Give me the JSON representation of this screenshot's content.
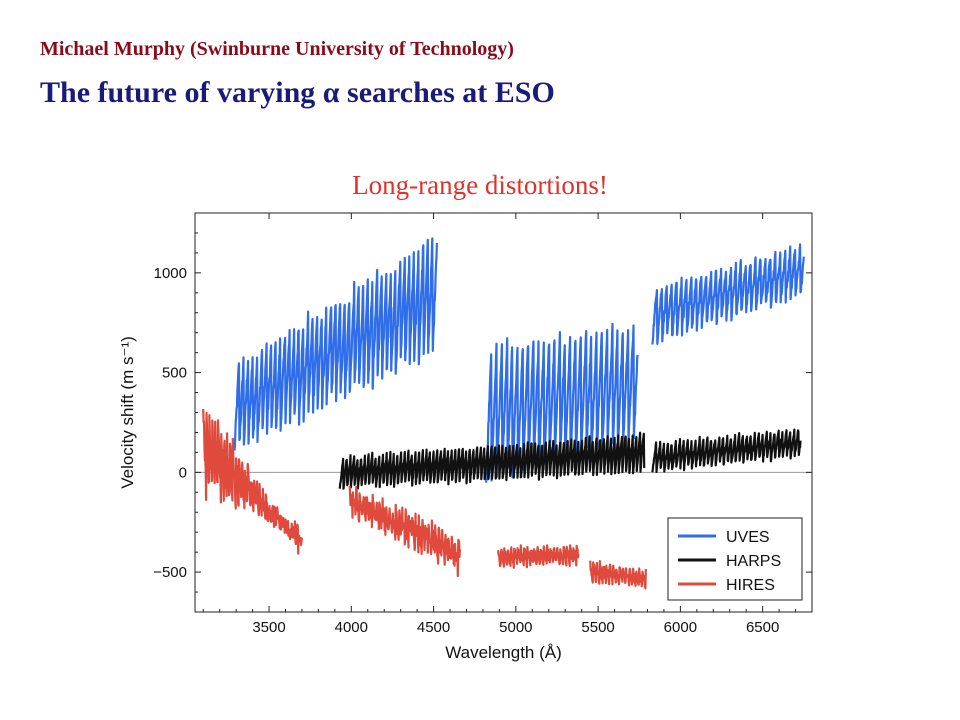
{
  "header": {
    "author": "Michael Murphy (Swinburne University of Technology)",
    "title": "The future of varying α searches at ESO"
  },
  "chart_data": {
    "type": "line",
    "title": "Long-range distortions!",
    "xlabel": "Wavelength (Å)",
    "ylabel": "Velocity shift (m s⁻¹)",
    "xlim": [
      3050,
      6800
    ],
    "ylim": [
      -700,
      1300
    ],
    "xticks": [
      3500,
      4000,
      4500,
      5000,
      5500,
      6000,
      6500
    ],
    "yticks": [
      -500,
      0,
      500,
      1000
    ],
    "zero_line": true,
    "grid": false,
    "legend_position": "bottom-right",
    "series": [
      {
        "name": "UVES",
        "color": "#2f6ee8",
        "segments": [
          {
            "x0": 3290,
            "x1": 4520,
            "start": [
              100,
              550
            ],
            "end": [
              600,
              1200
            ],
            "period": 28,
            "amp": 250,
            "noise": 60
          },
          {
            "x0": 4820,
            "x1": 5740,
            "start": [
              -50,
              650
            ],
            "end": [
              150,
              750
            ],
            "period": 32,
            "amp": 280,
            "noise": 50
          },
          {
            "x0": 5830,
            "x1": 6750,
            "start": [
              650,
              950
            ],
            "end": [
              900,
              1150
            ],
            "period": 30,
            "amp": 120,
            "noise": 45
          }
        ]
      },
      {
        "name": "HARPS",
        "color": "#111111",
        "segments": [
          {
            "x0": 3930,
            "x1": 5780,
            "start": [
              -80,
              80
            ],
            "end": [
              0,
              200
            ],
            "period": 22,
            "amp": 110,
            "noise": 20
          },
          {
            "x0": 5830,
            "x1": 6730,
            "start": [
              0,
              150
            ],
            "end": [
              80,
              220
            ],
            "period": 24,
            "amp": 110,
            "noise": 20
          }
        ]
      },
      {
        "name": "HIRES",
        "color": "#e04a3c",
        "segments": [
          {
            "x0": 3100,
            "x1": 3700,
            "start": [
              350,
              -100
            ],
            "end": [
              -400,
              -300
            ],
            "period": 18,
            "amp": 170,
            "noise": 90
          },
          {
            "x0": 3990,
            "x1": 4660,
            "start": [
              -100,
              -200
            ],
            "end": [
              -350,
              -500
            ],
            "period": 20,
            "amp": 140,
            "noise": 90
          },
          {
            "x0": 4890,
            "x1": 5380,
            "start": [
              -380,
              -480
            ],
            "end": [
              -380,
              -460
            ],
            "period": 20,
            "amp": 70,
            "noise": 35
          },
          {
            "x0": 5450,
            "x1": 5790,
            "start": [
              -450,
              -550
            ],
            "end": [
              -500,
              -580
            ],
            "period": 20,
            "amp": 70,
            "noise": 35
          }
        ]
      }
    ]
  }
}
